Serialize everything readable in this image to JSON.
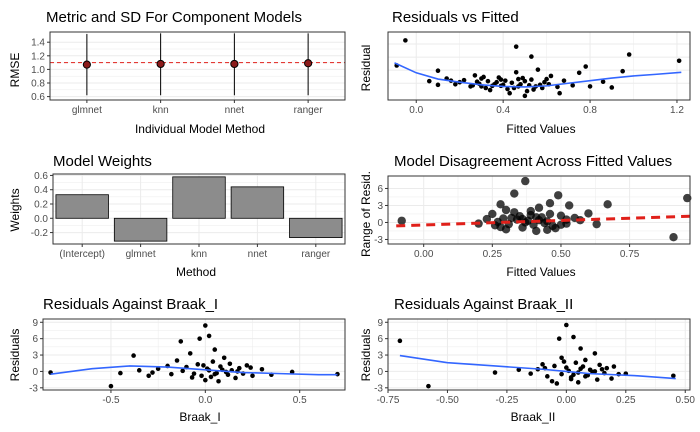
{
  "chart_data": [
    {
      "id": "p1",
      "type": "scatter",
      "title": "Metric and SD For Component Models",
      "xlabel": "Individual Model Method",
      "ylabel": "RMSE",
      "categories": [
        "glmnet",
        "knn",
        "nnet",
        "ranger"
      ],
      "yticks": [
        0.6,
        0.8,
        1.0,
        1.2,
        1.4
      ],
      "ylim": [
        0.55,
        1.55
      ],
      "series": [
        {
          "name": "",
          "values": [
            1.07,
            1.08,
            1.08,
            1.09
          ],
          "error_low": [
            0.62,
            0.62,
            0.62,
            0.62
          ],
          "error_high": [
            1.52,
            1.53,
            1.53,
            1.53
          ]
        }
      ],
      "reference_line": 1.1,
      "reference_color": "#e0201a",
      "grid": true
    },
    {
      "id": "p2",
      "type": "scatter",
      "title": "Residuals vs Fitted",
      "xlabel": "Fitted Values",
      "ylabel": "Residual",
      "xticks": [
        0.0,
        0.4,
        0.8,
        1.2
      ],
      "xlim": [
        -0.13,
        1.26
      ],
      "ylim": [
        -3.2,
        9.8
      ],
      "points": [
        [
          -0.05,
          8.2
        ],
        [
          0.46,
          7.0
        ],
        [
          0.98,
          5.5
        ],
        [
          0.78,
          3.2
        ],
        [
          1.21,
          4.3
        ],
        [
          0.53,
          5.1
        ],
        [
          -0.09,
          3.4
        ],
        [
          0.1,
          2.4
        ],
        [
          0.56,
          2.6
        ],
        [
          0.75,
          2.0
        ],
        [
          0.95,
          2.3
        ],
        [
          0.27,
          1.5
        ],
        [
          0.3,
          0.9
        ],
        [
          0.62,
          1.4
        ],
        [
          0.46,
          2.1
        ],
        [
          0.37,
          0.2
        ],
        [
          0.4,
          -0.3
        ],
        [
          0.5,
          0.4
        ],
        [
          0.35,
          -0.5
        ],
        [
          0.45,
          -0.9
        ],
        [
          0.55,
          -0.6
        ],
        [
          0.6,
          0.8
        ],
        [
          0.31,
          1.2
        ],
        [
          0.42,
          -1.1
        ],
        [
          0.51,
          -1.5
        ],
        [
          0.29,
          -0.1
        ],
        [
          0.33,
          0.4
        ],
        [
          0.39,
          0.7
        ],
        [
          0.44,
          0.1
        ],
        [
          0.48,
          -0.2
        ],
        [
          0.52,
          -0.4
        ],
        [
          0.57,
          -0.3
        ],
        [
          0.59,
          0.2
        ],
        [
          0.65,
          -0.7
        ],
        [
          0.68,
          0.5
        ],
        [
          0.72,
          -0.4
        ],
        [
          0.8,
          -0.6
        ],
        [
          0.86,
          0.3
        ],
        [
          0.9,
          -0.8
        ],
        [
          0.22,
          0.6
        ],
        [
          0.18,
          -0.2
        ],
        [
          0.14,
          0.9
        ],
        [
          0.1,
          -0.3
        ],
        [
          0.06,
          0.4
        ],
        [
          0.25,
          -0.6
        ],
        [
          0.28,
          0.3
        ],
        [
          0.36,
          -0.2
        ],
        [
          0.41,
          0.5
        ],
        [
          0.47,
          -0.6
        ],
        [
          0.53,
          0.7
        ],
        [
          0.58,
          -0.9
        ],
        [
          0.61,
          -0.2
        ],
        [
          0.43,
          -1.9
        ],
        [
          0.5,
          -2.4
        ],
        [
          0.66,
          -1.9
        ],
        [
          0.34,
          -1.3
        ],
        [
          0.38,
          1.1
        ],
        [
          0.26,
          -0.4
        ],
        [
          0.2,
          0.2
        ],
        [
          0.16,
          0.5
        ],
        [
          0.32,
          -0.9
        ],
        [
          0.49,
          1.0
        ],
        [
          0.54,
          -1.2
        ],
        [
          0.47,
          0.8
        ],
        [
          0.39,
          -0.5
        ],
        [
          0.3,
          -0.6
        ]
      ],
      "smooth": {
        "x": [
          -0.1,
          0.0,
          0.1,
          0.2,
          0.3,
          0.4,
          0.5,
          0.6,
          0.7,
          0.8,
          0.9,
          1.0,
          1.1,
          1.22
        ],
        "y": [
          3.9,
          2.0,
          0.8,
          0.2,
          -0.3,
          -0.6,
          -0.7,
          -0.5,
          0.0,
          0.5,
          1.0,
          1.4,
          1.7,
          2.1
        ]
      },
      "smooth_color": "#3366ff",
      "grid": true
    },
    {
      "id": "p3",
      "type": "bar",
      "title": "Model Weights",
      "xlabel": "Method",
      "ylabel": "Weights",
      "categories": [
        "(Intercept)",
        "glmnet",
        "knn",
        "nnet",
        "ranger"
      ],
      "values": [
        0.33,
        -0.32,
        0.58,
        0.44,
        -0.27
      ],
      "yticks": [
        -0.2,
        0.0,
        0.2,
        0.4,
        0.6
      ],
      "ylim": [
        -0.36,
        0.62
      ],
      "bar_color": "#8c8c8c",
      "grid": true
    },
    {
      "id": "p4",
      "type": "scatter",
      "title": "Model Disagreement Across Fitted Values",
      "xlabel": "Fitted Values",
      "ylabel": "Range of Resid.",
      "xticks": [
        0.0,
        0.25,
        0.5,
        0.75
      ],
      "xlim": [
        -0.13,
        0.97
      ],
      "yticks": [
        -3,
        0,
        3,
        6
      ],
      "ylim": [
        -3.8,
        8.2
      ],
      "points": [
        [
          -0.08,
          0.3
        ],
        [
          0.96,
          4.3
        ],
        [
          0.91,
          -2.6
        ],
        [
          0.37,
          7.3
        ],
        [
          0.33,
          5.1
        ],
        [
          0.49,
          4.8
        ],
        [
          0.28,
          3.2
        ],
        [
          0.46,
          3.4
        ],
        [
          0.53,
          3.0
        ],
        [
          0.67,
          3.2
        ],
        [
          0.25,
          1.5
        ],
        [
          0.3,
          2.2
        ],
        [
          0.42,
          2.6
        ],
        [
          0.5,
          1.2
        ],
        [
          0.55,
          0.8
        ],
        [
          0.6,
          1.6
        ],
        [
          0.63,
          -0.3
        ],
        [
          0.2,
          -0.2
        ],
        [
          0.23,
          0.6
        ],
        [
          0.27,
          0.1
        ],
        [
          0.32,
          0.8
        ],
        [
          0.35,
          1.1
        ],
        [
          0.38,
          0.3
        ],
        [
          0.4,
          -0.4
        ],
        [
          0.43,
          0.9
        ],
        [
          0.45,
          0.2
        ],
        [
          0.47,
          -0.6
        ],
        [
          0.52,
          -0.2
        ],
        [
          0.57,
          0.4
        ],
        [
          0.36,
          -0.9
        ],
        [
          0.3,
          -1.2
        ],
        [
          0.41,
          -1.5
        ],
        [
          0.48,
          -1.0
        ],
        [
          0.34,
          0.5
        ],
        [
          0.39,
          1.3
        ],
        [
          0.44,
          -0.1
        ],
        [
          0.29,
          0.7
        ],
        [
          0.26,
          -0.5
        ],
        [
          0.31,
          -0.3
        ],
        [
          0.37,
          0.0
        ],
        [
          0.42,
          0.4
        ],
        [
          0.46,
          1.5
        ],
        [
          0.5,
          -0.4
        ],
        [
          0.33,
          1.8
        ],
        [
          0.39,
          2.0
        ],
        [
          0.45,
          -1.3
        ],
        [
          0.28,
          -0.8
        ],
        [
          0.36,
          0.6
        ],
        [
          0.41,
          0.9
        ],
        [
          0.52,
          0.5
        ]
      ],
      "trend": {
        "x": [
          -0.1,
          0.97
        ],
        "y": [
          -0.6,
          1.1
        ]
      },
      "trend_color": "#e0201a",
      "grid": true
    },
    {
      "id": "p5",
      "type": "scatter",
      "title": "Residuals Against Braak_I",
      "xlabel": "Braak_I",
      "ylabel": "Residuals",
      "xticks": [
        -0.5,
        0.0,
        0.5
      ],
      "xlim": [
        -0.86,
        0.74
      ],
      "yticks": [
        -3,
        0,
        3,
        6,
        9
      ],
      "ylim": [
        -3.4,
        9.6
      ],
      "points": [
        [
          -0.82,
          -0.2
        ],
        [
          0.7,
          -0.5
        ],
        [
          -0.13,
          5.5
        ],
        [
          -0.08,
          3.3
        ],
        [
          -0.15,
          2.0
        ],
        [
          -0.2,
          1.0
        ],
        [
          0.0,
          8.4
        ],
        [
          0.02,
          6.5
        ],
        [
          -0.03,
          6.0
        ],
        [
          0.05,
          4.0
        ],
        [
          0.1,
          2.5
        ],
        [
          -0.38,
          2.9
        ],
        [
          -0.5,
          -2.7
        ],
        [
          -0.3,
          -0.8
        ],
        [
          -0.25,
          0.5
        ],
        [
          -0.1,
          0.8
        ],
        [
          -0.06,
          -0.4
        ],
        [
          -0.04,
          1.3
        ],
        [
          -0.02,
          -0.8
        ],
        [
          0.01,
          0.5
        ],
        [
          0.03,
          -1.0
        ],
        [
          0.04,
          1.8
        ],
        [
          0.06,
          -0.3
        ],
        [
          0.08,
          0.9
        ],
        [
          0.12,
          -0.6
        ],
        [
          0.14,
          0.2
        ],
        [
          0.16,
          -1.2
        ],
        [
          0.18,
          0.6
        ],
        [
          0.2,
          -0.4
        ],
        [
          0.22,
          1.1
        ],
        [
          0.25,
          -0.8
        ],
        [
          0.3,
          0.4
        ],
        [
          0.46,
          -0.1
        ],
        [
          0.35,
          -0.6
        ],
        [
          -0.45,
          -0.3
        ],
        [
          -0.35,
          0.2
        ],
        [
          -0.18,
          -0.5
        ],
        [
          -0.12,
          0.1
        ],
        [
          0.0,
          -1.6
        ],
        [
          0.02,
          0.2
        ],
        [
          0.07,
          -1.8
        ],
        [
          -0.01,
          1.1
        ],
        [
          0.09,
          0.3
        ],
        [
          0.11,
          -0.1
        ],
        [
          0.13,
          1.4
        ],
        [
          -0.07,
          -1.1
        ],
        [
          0.17,
          0.0
        ],
        [
          0.24,
          0.7
        ],
        [
          -0.28,
          -0.2
        ],
        [
          0.05,
          -0.5
        ]
      ],
      "smooth": {
        "x": [
          -0.82,
          -0.6,
          -0.4,
          -0.2,
          0.0,
          0.2,
          0.4,
          0.6,
          0.7
        ],
        "y": [
          -0.5,
          0.5,
          1.0,
          0.8,
          0.3,
          -0.2,
          -0.4,
          -0.6,
          -0.6
        ]
      },
      "smooth_color": "#3366ff",
      "grid": true
    },
    {
      "id": "p6",
      "type": "scatter",
      "title": "Residuals Against Braak_II",
      "xlabel": "Braak_II",
      "ylabel": "Residuals",
      "xticks": [
        -0.75,
        -0.5,
        -0.25,
        0.0,
        0.25,
        0.5
      ],
      "xticklabels": [
        "-0.75",
        "-0.50",
        "-0.25",
        "0.00",
        "0.25",
        "0.50"
      ],
      "xlim": [
        -0.75,
        0.52
      ],
      "yticks": [
        -3,
        0,
        3,
        6,
        9
      ],
      "ylim": [
        -3.4,
        9.6
      ],
      "points": [
        [
          -0.7,
          5.6
        ],
        [
          -0.58,
          -2.7
        ],
        [
          -0.3,
          -0.2
        ],
        [
          -0.2,
          0.3
        ],
        [
          0.0,
          8.5
        ],
        [
          0.03,
          6.3
        ],
        [
          -0.03,
          6.0
        ],
        [
          0.06,
          4.2
        ],
        [
          0.12,
          3.3
        ],
        [
          -0.02,
          2.5
        ],
        [
          0.45,
          -0.8
        ],
        [
          0.19,
          -1.3
        ],
        [
          0.22,
          -0.5
        ],
        [
          -0.12,
          0.4
        ],
        [
          -0.08,
          -0.9
        ],
        [
          -0.05,
          1.0
        ],
        [
          -0.02,
          -0.5
        ],
        [
          0.0,
          0.7
        ],
        [
          0.02,
          -1.1
        ],
        [
          0.04,
          1.6
        ],
        [
          0.05,
          -0.2
        ],
        [
          0.07,
          0.9
        ],
        [
          0.09,
          -0.7
        ],
        [
          0.1,
          0.3
        ],
        [
          0.13,
          -1.5
        ],
        [
          0.15,
          0.4
        ],
        [
          0.16,
          -0.3
        ],
        [
          0.2,
          0.9
        ],
        [
          0.25,
          -0.4
        ],
        [
          0.08,
          2.1
        ],
        [
          -0.15,
          -0.4
        ],
        [
          -0.1,
          1.3
        ],
        [
          -0.06,
          -1.8
        ],
        [
          0.01,
          0.1
        ],
        [
          0.03,
          -0.6
        ],
        [
          0.06,
          0.5
        ],
        [
          0.11,
          -0.1
        ],
        [
          0.14,
          1.2
        ],
        [
          -0.04,
          -2.2
        ],
        [
          0.17,
          0.6
        ],
        [
          0.02,
          -1.4
        ],
        [
          -0.01,
          1.8
        ],
        [
          0.08,
          -0.9
        ],
        [
          0.12,
          0.0
        ],
        [
          -0.09,
          0.6
        ],
        [
          0.05,
          -2.0
        ]
      ],
      "smooth": {
        "x": [
          -0.7,
          -0.5,
          -0.3,
          -0.1,
          0.0,
          0.1,
          0.3,
          0.46
        ],
        "y": [
          2.9,
          1.6,
          1.0,
          0.4,
          0.0,
          -0.4,
          -0.8,
          -1.3
        ]
      },
      "smooth_color": "#3366ff",
      "grid": true
    }
  ]
}
